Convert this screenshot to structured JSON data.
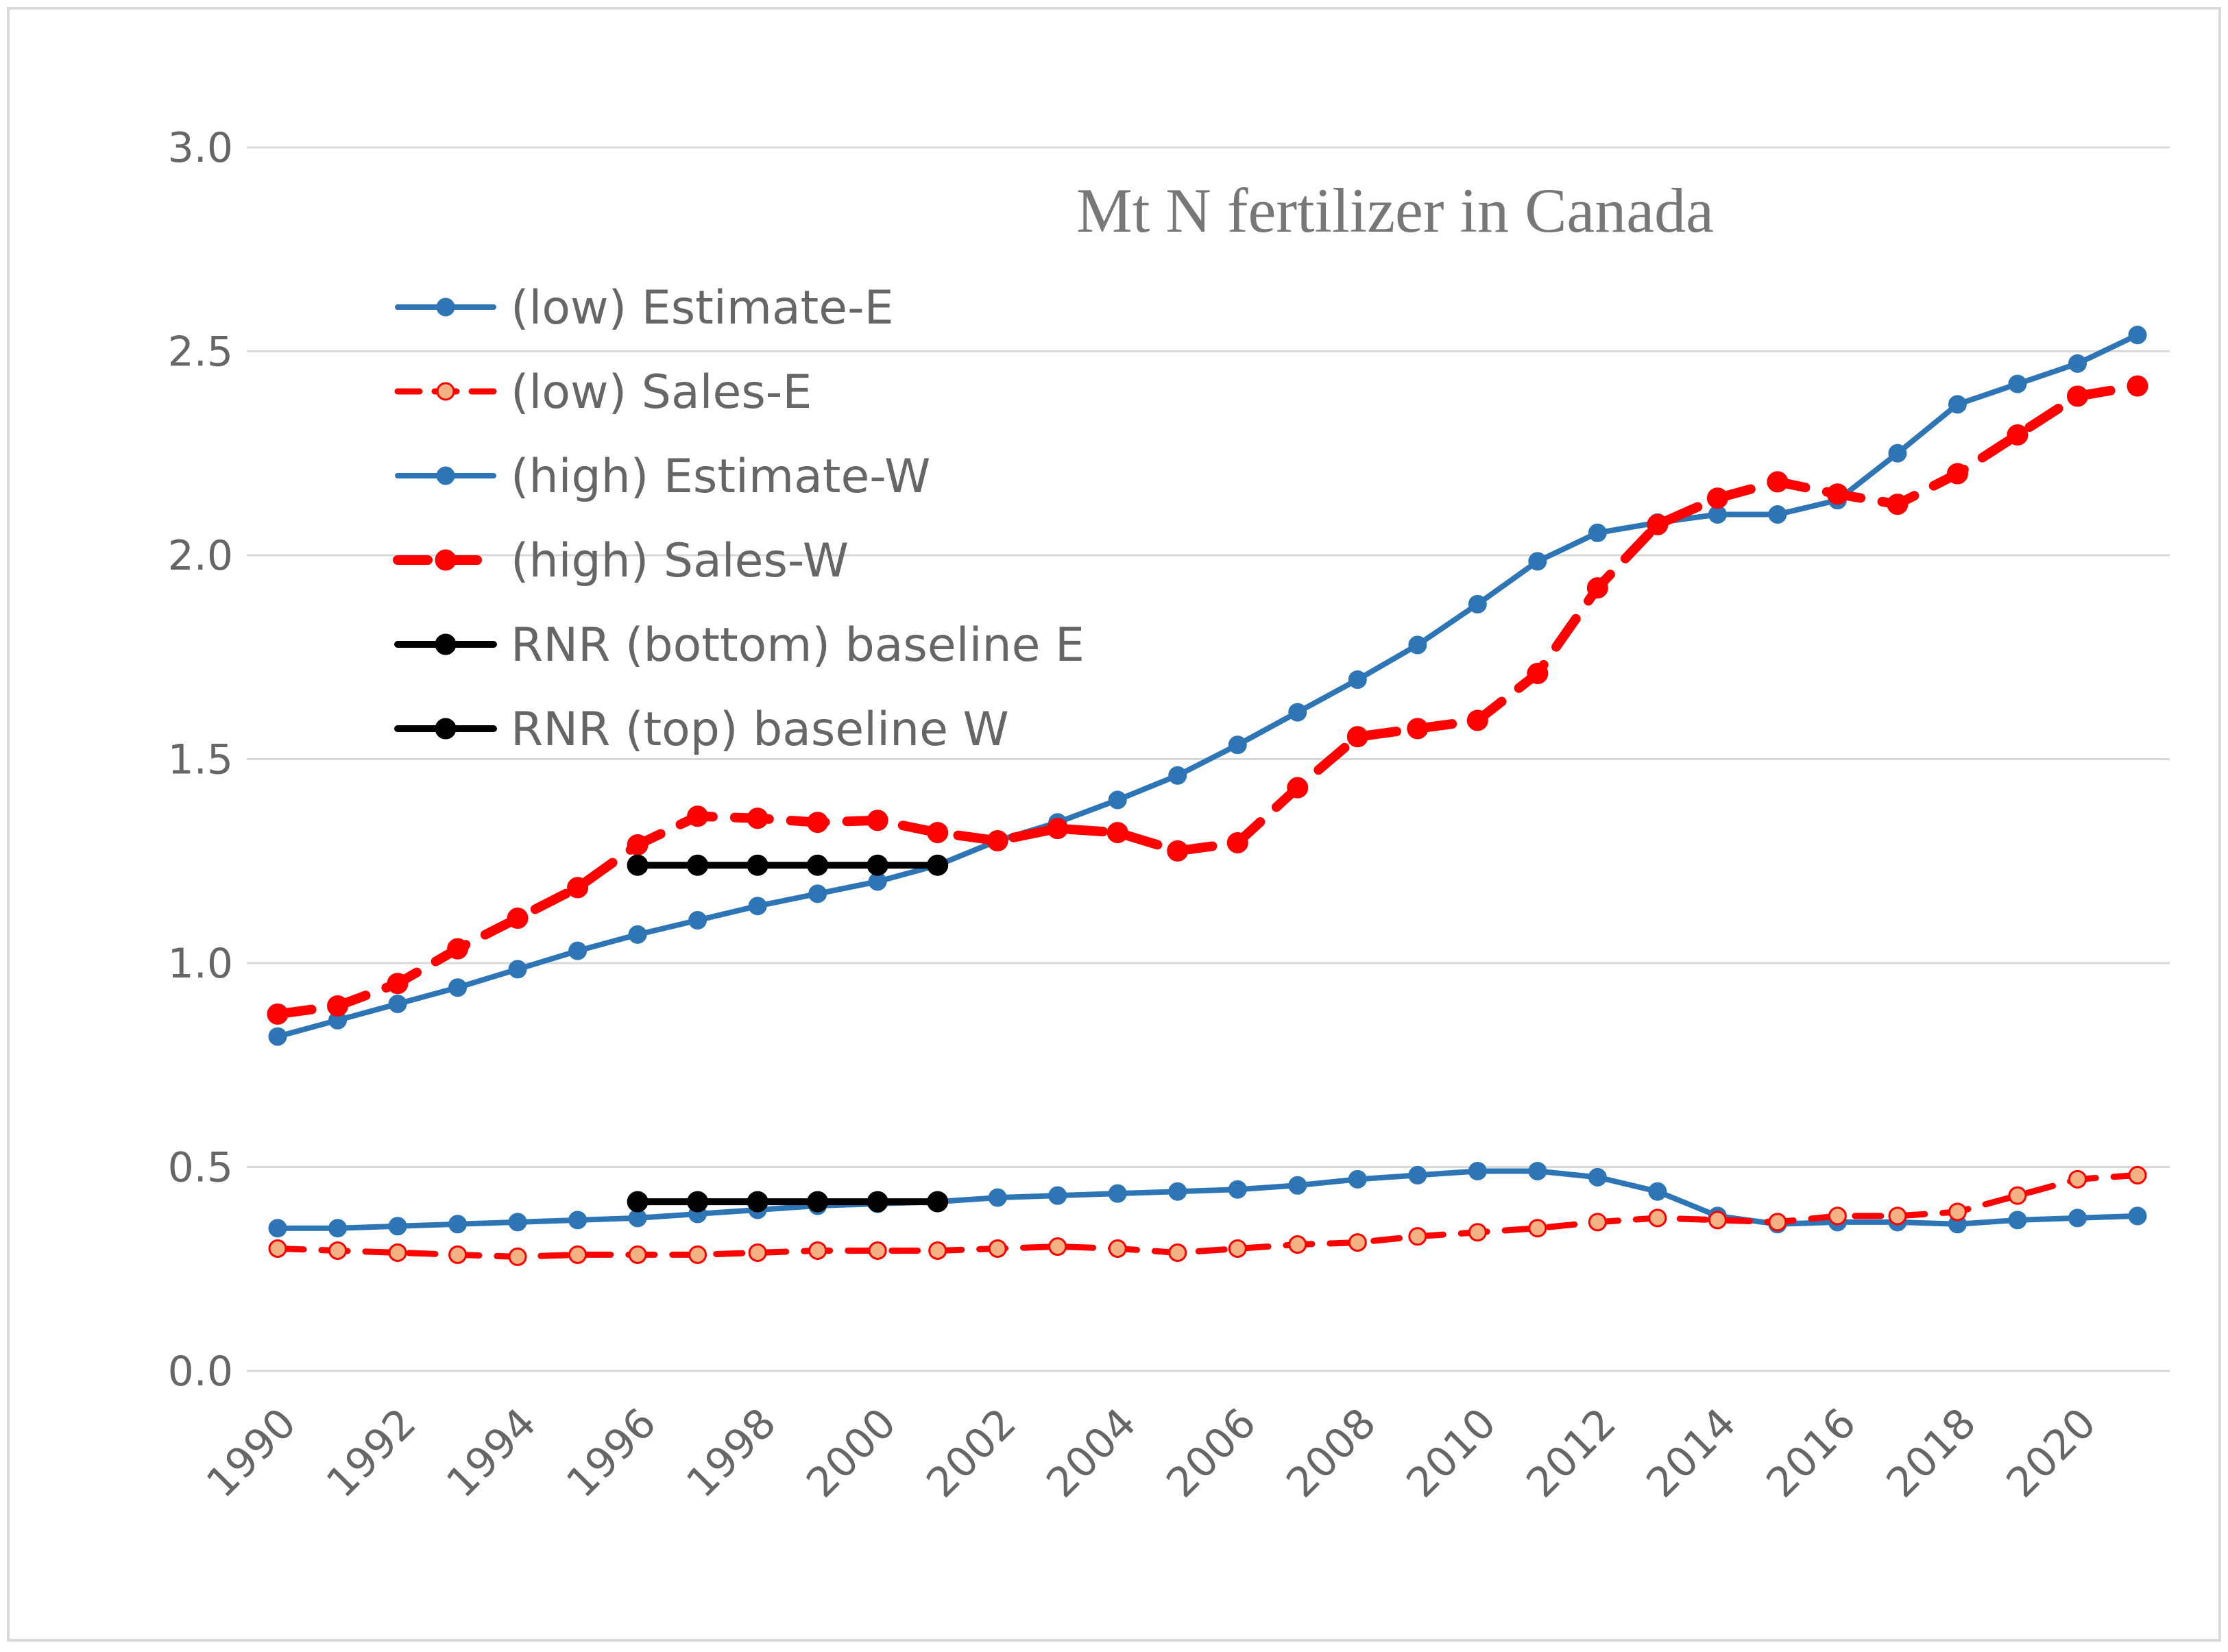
{
  "chart_data": {
    "type": "line",
    "title": "Mt N fertilizer in Canada",
    "xlabel": "",
    "ylabel": "",
    "xlim": [
      1990,
      2021
    ],
    "ylim": [
      0,
      3
    ],
    "y_ticks": [
      "0.0",
      "0.5",
      "1.0",
      "1.5",
      "2.0",
      "2.5",
      "3.0"
    ],
    "x_ticks": [
      "1990",
      "1992",
      "1994",
      "1996",
      "1998",
      "2000",
      "2002",
      "2004",
      "2006",
      "2008",
      "2010",
      "2012",
      "2014",
      "2016",
      "2018",
      "2020"
    ],
    "grid": true,
    "legend_position": "upper-left",
    "x": [
      1990,
      1991,
      1992,
      1993,
      1994,
      1995,
      1996,
      1997,
      1998,
      1999,
      2000,
      2001,
      2002,
      2003,
      2004,
      2005,
      2006,
      2007,
      2008,
      2009,
      2010,
      2011,
      2012,
      2013,
      2014,
      2015,
      2016,
      2017,
      2018,
      2019,
      2020,
      2021
    ],
    "series": [
      {
        "name": "(low) Estimate-E",
        "color": "#2E75B6",
        "style": "solid",
        "marker_color": "#2E75B6",
        "values": [
          0.35,
          0.35,
          0.355,
          0.36,
          0.365,
          0.37,
          0.375,
          0.385,
          0.395,
          0.405,
          0.41,
          0.415,
          0.425,
          0.43,
          0.435,
          0.44,
          0.445,
          0.455,
          0.47,
          0.48,
          0.49,
          0.49,
          0.475,
          0.44,
          0.38,
          0.36,
          0.365,
          0.365,
          0.36,
          0.37,
          0.375,
          0.38
        ]
      },
      {
        "name": "(low) Sales-E",
        "color": "#FF0000",
        "style": "dashed",
        "marker_color": "#F4B183",
        "values": [
          0.3,
          0.295,
          0.29,
          0.285,
          0.28,
          0.285,
          0.285,
          0.285,
          0.29,
          0.295,
          0.295,
          0.295,
          0.3,
          0.305,
          0.3,
          0.29,
          0.3,
          0.31,
          0.315,
          0.33,
          0.34,
          0.35,
          0.365,
          0.375,
          0.37,
          0.365,
          0.38,
          0.38,
          0.39,
          0.43,
          0.47,
          0.48
        ]
      },
      {
        "name": "(high) Estimate-W",
        "color": "#2E75B6",
        "style": "solid",
        "marker_color": "#2E75B6",
        "values": [
          0.82,
          0.86,
          0.9,
          0.94,
          0.985,
          1.03,
          1.07,
          1.105,
          1.14,
          1.17,
          1.2,
          1.24,
          1.3,
          1.345,
          1.4,
          1.46,
          1.535,
          1.615,
          1.695,
          1.78,
          1.88,
          1.985,
          2.055,
          2.08,
          2.1,
          2.1,
          2.135,
          2.25,
          2.37,
          2.42,
          2.47,
          2.54
        ]
      },
      {
        "name": "(high) Sales-W",
        "color": "#FF0000",
        "style": "dashed",
        "marker_color": "#FF0000",
        "values": [
          0.875,
          0.895,
          0.95,
          1.035,
          1.11,
          1.185,
          1.29,
          1.36,
          1.355,
          1.345,
          1.35,
          1.32,
          1.3,
          1.33,
          1.32,
          1.275,
          1.295,
          1.43,
          1.555,
          1.575,
          1.595,
          1.71,
          1.92,
          2.075,
          2.14,
          2.18,
          2.15,
          2.125,
          2.2,
          2.295,
          2.39,
          2.415
        ]
      },
      {
        "name": "RNR (bottom) baseline E",
        "color": "#000000",
        "style": "solid",
        "marker_color": "#000000",
        "x": [
          1996,
          1997,
          1998,
          1999,
          2000,
          2001
        ],
        "values": [
          0.415,
          0.415,
          0.415,
          0.415,
          0.415,
          0.415
        ]
      },
      {
        "name": "RNR (top) baseline W",
        "color": "#000000",
        "style": "solid",
        "marker_color": "#000000",
        "x": [
          1996,
          1997,
          1998,
          1999,
          2000,
          2001
        ],
        "values": [
          1.24,
          1.24,
          1.24,
          1.24,
          1.24,
          1.24
        ]
      }
    ]
  }
}
